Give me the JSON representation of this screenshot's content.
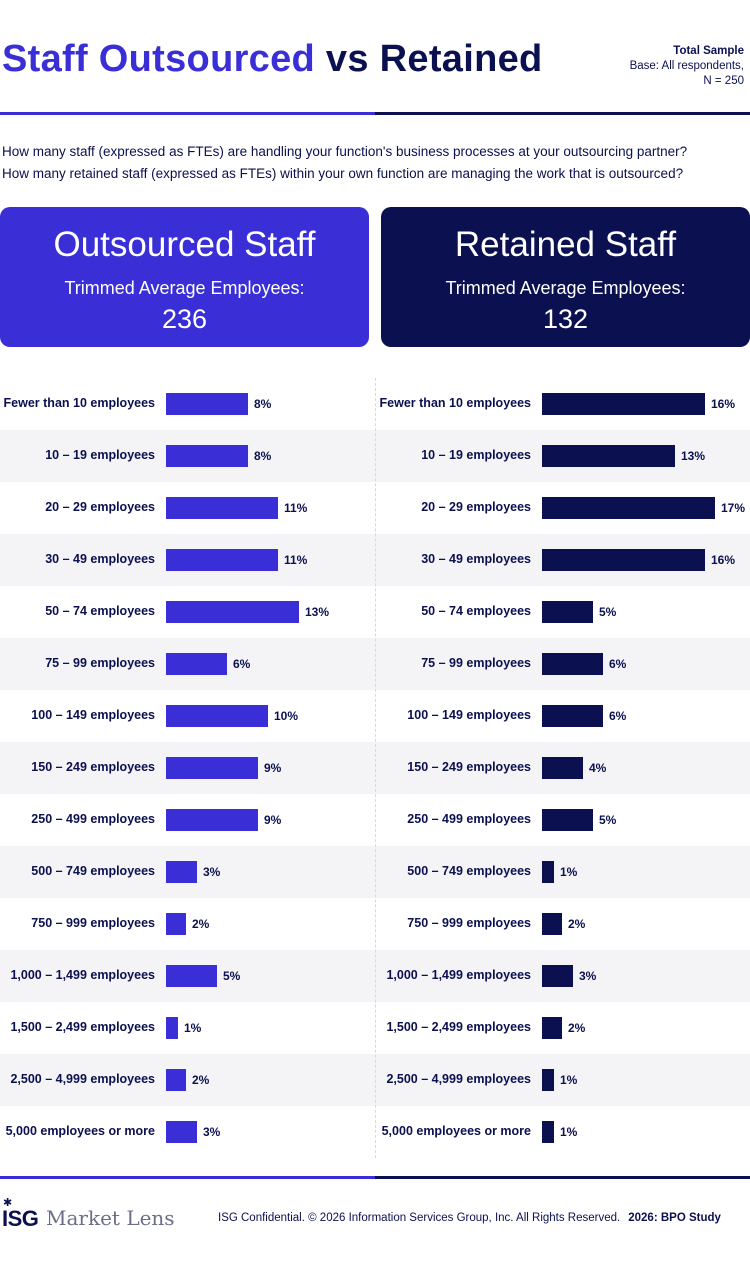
{
  "header": {
    "title_accent": "Staff Outsourced",
    "title_rest": " vs Retained",
    "sample_title": "Total Sample",
    "sample_base": "Base: All respondents,",
    "sample_n": "N = 250"
  },
  "questions": [
    "How many staff (expressed as FTEs) are handling your function's business processes at your outsourcing partner?",
    "How many retained staff (expressed as FTEs) within your own function are managing the work that is outsourced?"
  ],
  "cards": {
    "outsourced": {
      "title": "Outsourced Staff",
      "subtitle": "Trimmed Average Employees:",
      "value": "236"
    },
    "retained": {
      "title": "Retained Staff",
      "subtitle": "Trimmed Average Employees:",
      "value": "132"
    }
  },
  "colors": {
    "outsourced": "#3a2fd6",
    "retained": "#0b1050",
    "row_alt": "#f4f4f6"
  },
  "chart_data": [
    {
      "type": "bar",
      "orientation": "horizontal",
      "title": "Outsourced Staff",
      "categories": [
        "Fewer than 10 employees",
        "10 - 19 employees",
        "20 - 29 employees",
        "30 - 49 employees",
        "50 - 74 employees",
        "75 - 99 employees",
        "100 - 149 employees",
        "150 - 249 employees",
        "250 - 499 employees",
        "500 - 749 employees",
        "750 - 999 employees",
        "1,000 - 1,499 employees",
        "1,500 - 2,499 employees",
        "2,500 - 4,999 employees",
        "5,000 employees or more"
      ],
      "values": [
        8,
        8,
        11,
        11,
        13,
        6,
        10,
        9,
        9,
        3,
        2,
        5,
        1,
        2,
        3
      ],
      "unit": "%",
      "color": "#3a2fd6"
    },
    {
      "type": "bar",
      "orientation": "horizontal",
      "title": "Retained Staff",
      "categories": [
        "Fewer than 10 employees",
        "10 - 19 employees",
        "20 - 29 employees",
        "30 - 49 employees",
        "50 - 74 employees",
        "75 - 99 employees",
        "100 - 149 employees",
        "150 - 249 employees",
        "250 - 499 employees",
        "500 - 749 employees",
        "750 - 999 employees",
        "1,000 - 1,499 employees",
        "1,500 - 2,499 employees",
        "2,500 - 4,999 employees",
        "5,000 employees or more"
      ],
      "values": [
        16,
        13,
        17,
        16,
        5,
        6,
        6,
        4,
        5,
        1,
        2,
        3,
        2,
        1,
        1
      ],
      "unit": "%",
      "color": "#0b1050"
    }
  ],
  "footer": {
    "logo_isg": "ISG",
    "logo_market_lens": "Market Lens",
    "confidential": "ISG Confidential. © 2026 Information Services Group, Inc. All Rights Reserved.",
    "study": "2026: BPO Study"
  }
}
